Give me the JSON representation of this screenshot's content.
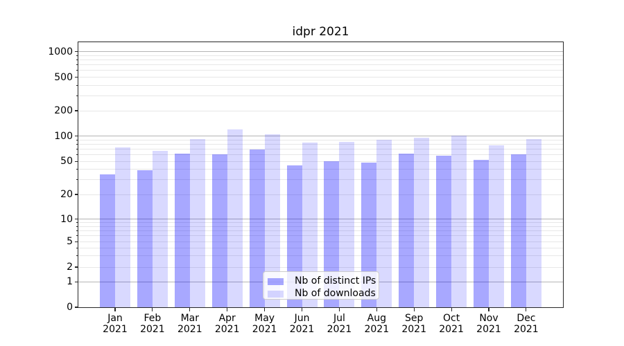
{
  "chart_data": {
    "type": "bar",
    "title": "idpr 2021",
    "categories": [
      "Jan",
      "Feb",
      "Mar",
      "Apr",
      "May",
      "Jun",
      "Jul",
      "Aug",
      "Sep",
      "Oct",
      "Nov",
      "Dec"
    ],
    "category_year": "2021",
    "series": [
      {
        "name": "Nb of distinct IPs",
        "color": "#0000ff",
        "alpha": 0.34,
        "values": [
          35,
          39,
          62,
          61,
          69,
          45,
          50,
          48,
          62,
          58,
          52,
          61
        ]
      },
      {
        "name": "Nb of downloads",
        "color": "#0000ff",
        "alpha": 0.15,
        "values": [
          73,
          67,
          93,
          120,
          105,
          84,
          85,
          90,
          95,
          102,
          78,
          92
        ]
      }
    ],
    "xlabel": "",
    "ylabel": "",
    "yscale": "symlog",
    "yticks": [
      0,
      1,
      2,
      5,
      10,
      20,
      50,
      100,
      200,
      500,
      1000
    ],
    "ylim": [
      0,
      1300
    ],
    "grid": true,
    "grid_major_color": "#b4b4b4",
    "grid_minor_color": "#e7e7e7",
    "legend_position": "lower center"
  }
}
